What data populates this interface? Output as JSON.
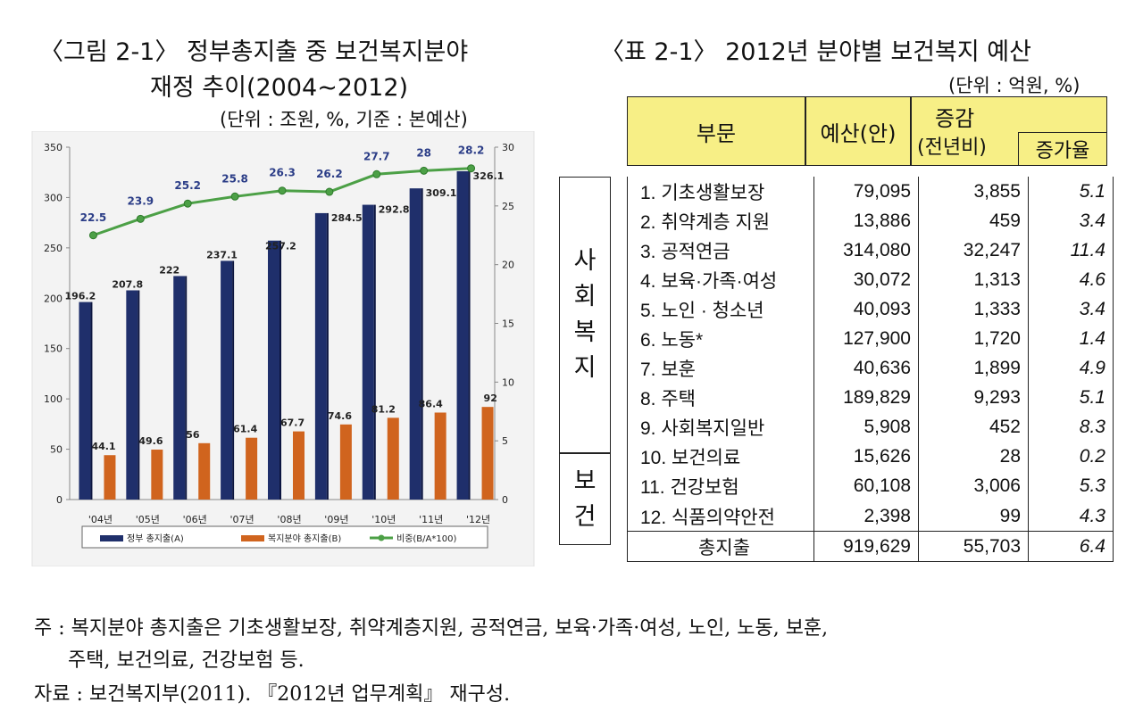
{
  "figure": {
    "title_line1": "〈그림 2-1〉 정부총지출 중 보건복지분야",
    "title_line2": "재정 추이(2004∼2012)",
    "unit": "(단위 : 조원, %, 기준 : 본예산)"
  },
  "table": {
    "title": "〈표 2-1〉 2012년 분야별 보건복지 예산",
    "unit": "(단위 : 억원, %)",
    "header": {
      "category": "부문",
      "budget": "예산(안)",
      "change_top": "증감",
      "change_sub": "(전년비)",
      "rate": "증가율"
    },
    "section_welfare": "사회복지",
    "section_health": "보건",
    "rows": [
      {
        "name": "1. 기초생활보장",
        "budget": "79,095",
        "change": "3,855",
        "rate": "5.1"
      },
      {
        "name": "2. 취약계층 지원",
        "budget": "13,886",
        "change": "459",
        "rate": "3.4"
      },
      {
        "name": "3. 공적연금",
        "budget": "314,080",
        "change": "32,247",
        "rate": "11.4"
      },
      {
        "name": "4. 보육·가족·여성",
        "budget": "30,072",
        "change": "1,313",
        "rate": "4.6"
      },
      {
        "name": "5. 노인 · 청소년",
        "budget": "40,093",
        "change": "1,333",
        "rate": "3.4"
      },
      {
        "name": "6. 노동*",
        "budget": "127,900",
        "change": "1,720",
        "rate": "1.4"
      },
      {
        "name": "7. 보훈",
        "budget": "40,636",
        "change": "1,899",
        "rate": "4.9"
      },
      {
        "name": "8. 주택",
        "budget": "189,829",
        "change": "9,293",
        "rate": "5.1"
      },
      {
        "name": "9. 사회복지일반",
        "budget": "5,908",
        "change": "452",
        "rate": "8.3"
      },
      {
        "name": "10. 보건의료",
        "budget": "15,626",
        "change": "28",
        "rate": "0.2"
      },
      {
        "name": "11. 건강보험",
        "budget": "60,108",
        "change": "3,006",
        "rate": "5.3"
      },
      {
        "name": "12. 식품의약안전",
        "budget": "2,398",
        "change": "99",
        "rate": "4.3"
      },
      {
        "name": "총지출",
        "budget": "919,629",
        "change": "55,703",
        "rate": "6.4"
      }
    ]
  },
  "footnotes": {
    "note_line1": "주 : 복지분야 총지출은 기초생활보장, 취약계층지원, 공적연금, 보육·가족·여성, 노인, 노동, 보훈,",
    "note_line2": "주택, 보건의료, 건강보험 등.",
    "source": "자료 : 보건복지부(2011). 『2012년 업무계획』 재구성."
  },
  "chart_data": {
    "type": "bar",
    "categories": [
      "'04년",
      "'05년",
      "'06년",
      "'07년",
      "'08년",
      "'09년",
      "'10년",
      "'11년",
      "'12년"
    ],
    "series": [
      {
        "name": "정부 총지출(A)",
        "type": "bar",
        "axis": "left",
        "color": "#1f2f6b",
        "values": [
          196.2,
          207.8,
          222,
          237.1,
          257.2,
          284.5,
          292.8,
          309.1,
          326.1
        ],
        "labels": [
          "196.2",
          "207.8",
          "222",
          "237.1",
          "257.2",
          "284.5",
          "292.8",
          "309.1",
          "326.1"
        ]
      },
      {
        "name": "복지분야 총지출(B)",
        "type": "bar",
        "axis": "left",
        "color": "#d0641e",
        "values": [
          44.1,
          49.6,
          56,
          61.4,
          67.7,
          74.6,
          81.2,
          86.4,
          92
        ],
        "labels": [
          "44.1",
          "49.6",
          "56",
          "61.4",
          "67.7",
          "74.6",
          "81.2",
          "86.4",
          "92"
        ]
      },
      {
        "name": "비중(B/A*100)",
        "type": "line",
        "axis": "right",
        "color": "#4ca046",
        "values": [
          22.5,
          23.9,
          25.2,
          25.8,
          26.3,
          26.2,
          27.7,
          28,
          28.2
        ],
        "labels": [
          "22.5",
          "23.9",
          "25.2",
          "25.8",
          "26.3",
          "26.2",
          "27.7",
          "28",
          "28.2"
        ]
      }
    ],
    "ylim_left": [
      0,
      350
    ],
    "ylim_right": [
      0,
      30
    ],
    "yticks_left": [
      "0",
      "50",
      "100",
      "150",
      "200",
      "250",
      "300",
      "350"
    ],
    "yticks_right": [
      "0",
      "5",
      "10",
      "15",
      "20",
      "25",
      "30"
    ],
    "grid": false,
    "legend_position": "bottom",
    "label_color": "#2b3d87"
  }
}
